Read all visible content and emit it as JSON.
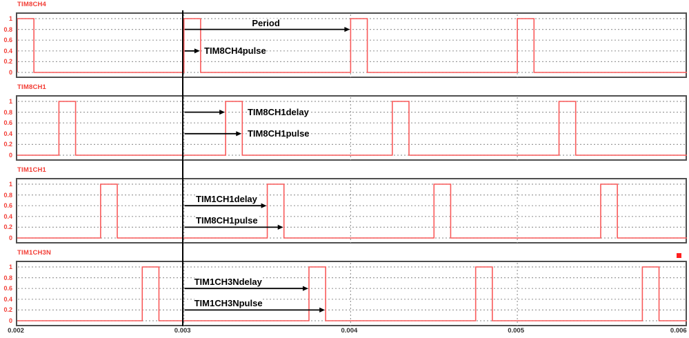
{
  "page": {
    "background": "#ffffff"
  },
  "colors": {
    "waveform": "#f95a5a",
    "channel_label": "#f23b33",
    "grid": "#9a9a9a",
    "box_border": "#4e4e4e",
    "annotation_text": "#000000",
    "cursor": "#000000",
    "x_tick_text": "#2e2e2e",
    "legend_marker": "#ff1f1f"
  },
  "cursor": {
    "time": 0.003
  },
  "x_axis": {
    "tick_labels": [
      "0.002",
      "0.003",
      "0.004",
      "0.005",
      "0.006"
    ],
    "tick_times": [
      0.002,
      0.003,
      0.004,
      0.005,
      0.006
    ]
  },
  "y_axis": {
    "tick_labels": [
      "1",
      "0.8",
      "0.6",
      "0.4",
      "0.2",
      "0"
    ],
    "tick_values": [
      1,
      0.8,
      0.6,
      0.4,
      0.2,
      0
    ]
  },
  "chart_data": [
    {
      "type": "line",
      "title": "TIM8CH4",
      "x_range": [
        0.002,
        0.006
      ],
      "y_range": [
        0,
        1
      ],
      "x_gridlines": [
        0.003,
        0.004,
        0.005
      ],
      "signal": {
        "low": 0,
        "high": 1,
        "pulse_width": 0.0001,
        "pulse_starts": [
          0.002,
          0.003,
          0.004,
          0.005
        ]
      },
      "annotations": [
        {
          "label": "Period",
          "y": 0.8,
          "t_start": 0.003,
          "t_end": 0.004,
          "label_mode": "above-center"
        },
        {
          "label": "TIM8CH4pulse",
          "y": 0.4,
          "t_start": 0.003,
          "t_end": 0.0031,
          "label_mode": "right",
          "label_t": 0.00313
        }
      ]
    },
    {
      "type": "line",
      "title": "TIM8CH1",
      "x_range": [
        0.002,
        0.006
      ],
      "y_range": [
        0,
        1
      ],
      "x_gridlines": [
        0.003,
        0.004,
        0.005
      ],
      "signal": {
        "low": 0,
        "high": 1,
        "pulse_width": 0.0001,
        "pulse_starts": [
          0.00225,
          0.00325,
          0.00425,
          0.00525
        ]
      },
      "annotations": [
        {
          "label": "TIM8CH1delay",
          "y": 0.8,
          "t_start": 0.003,
          "t_end": 0.00325,
          "label_mode": "right",
          "label_t": 0.00339
        },
        {
          "label": "TIM8CH1pulse",
          "y": 0.4,
          "t_start": 0.003,
          "t_end": 0.00335,
          "label_mode": "right",
          "label_t": 0.00339
        }
      ]
    },
    {
      "type": "line",
      "title": "TIM1CH1",
      "x_range": [
        0.002,
        0.006
      ],
      "y_range": [
        0,
        1
      ],
      "x_gridlines": [
        0.003,
        0.004,
        0.005
      ],
      "signal": {
        "low": 0,
        "high": 1,
        "pulse_width": 0.0001,
        "pulse_starts": [
          0.0025,
          0.0035,
          0.0045,
          0.0055
        ]
      },
      "annotations": [
        {
          "label": "TIM1CH1delay",
          "y": 0.6,
          "t_start": 0.003,
          "t_end": 0.0035,
          "label_mode": "above-left",
          "label_t": 0.00308
        },
        {
          "label": "TIM8CH1pulse",
          "y": 0.2,
          "t_start": 0.003,
          "t_end": 0.0036,
          "label_mode": "above-left",
          "label_t": 0.00308
        }
      ]
    },
    {
      "type": "line",
      "title": "TIM1CH3N",
      "x_range": [
        0.002,
        0.006
      ],
      "y_range": [
        0,
        1
      ],
      "x_gridlines": [
        0.003,
        0.004,
        0.005
      ],
      "signal": {
        "low": 0,
        "high": 1,
        "pulse_width": 0.0001,
        "pulse_starts": [
          0.00275,
          0.00375,
          0.00475,
          0.00575
        ]
      },
      "annotations": [
        {
          "label": "TIM1CH3Ndelay",
          "y": 0.6,
          "t_start": 0.003,
          "t_end": 0.00375,
          "label_mode": "above-left",
          "label_t": 0.00307
        },
        {
          "label": "TIM1CH3Npulse",
          "y": 0.2,
          "t_start": 0.003,
          "t_end": 0.00385,
          "label_mode": "above-left",
          "label_t": 0.00307
        }
      ]
    }
  ]
}
